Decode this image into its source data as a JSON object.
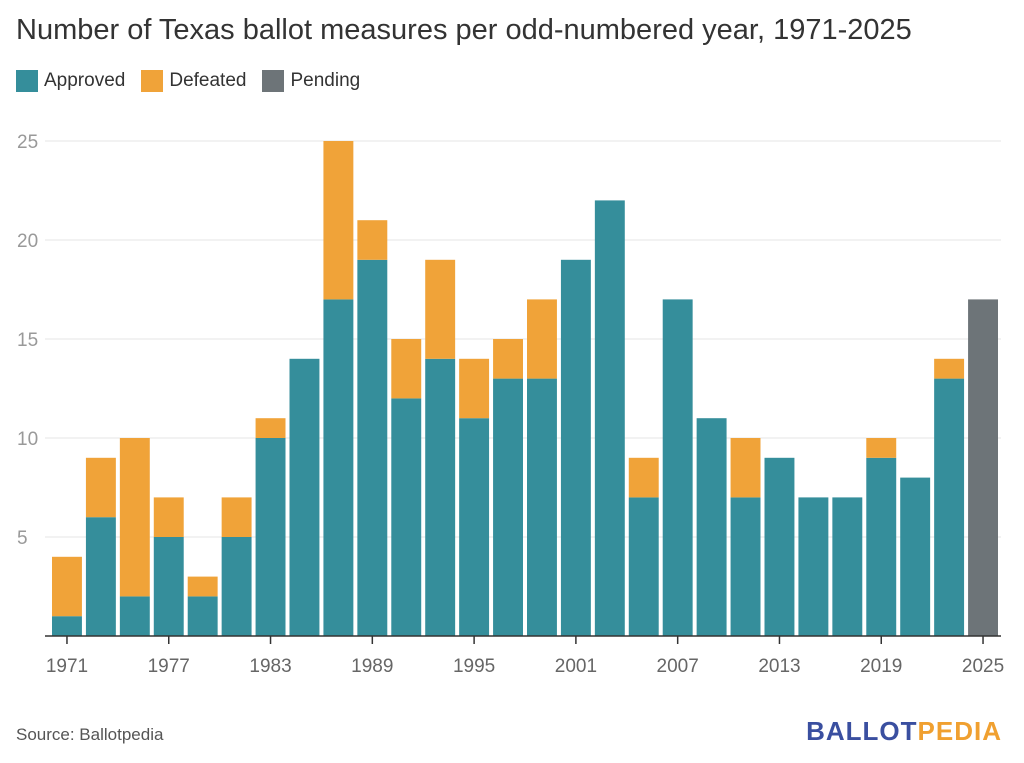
{
  "chart_data": {
    "type": "bar",
    "stacked": true,
    "title": "Number of Texas ballot measures per odd-numbered year, 1971-2025",
    "xlabel": "",
    "ylabel": "",
    "ylim": [
      0,
      25
    ],
    "yticks": [
      "5",
      "10",
      "15",
      "20",
      "25"
    ],
    "xticks": [
      "1971",
      "1977",
      "1983",
      "1989",
      "1995",
      "2001",
      "2007",
      "2013",
      "2019",
      "2025"
    ],
    "grid": true,
    "legend_position": "top-left",
    "categories": [
      1971,
      1973,
      1975,
      1977,
      1979,
      1981,
      1983,
      1985,
      1987,
      1989,
      1991,
      1993,
      1995,
      1997,
      1999,
      2001,
      2003,
      2005,
      2007,
      2009,
      2011,
      2013,
      2015,
      2017,
      2019,
      2021,
      2023,
      2025
    ],
    "series": [
      {
        "name": "Approved",
        "color": "#358e9b",
        "values": [
          1,
          6,
          2,
          5,
          2,
          5,
          10,
          14,
          17,
          19,
          12,
          14,
          11,
          13,
          13,
          19,
          22,
          7,
          17,
          11,
          7,
          9,
          7,
          7,
          9,
          8,
          13,
          0
        ]
      },
      {
        "name": "Defeated",
        "color": "#f0a339",
        "values": [
          3,
          3,
          8,
          2,
          1,
          2,
          1,
          0,
          8,
          2,
          3,
          5,
          3,
          2,
          4,
          0,
          0,
          2,
          0,
          0,
          3,
          0,
          0,
          0,
          1,
          0,
          1,
          0
        ]
      },
      {
        "name": "Pending",
        "color": "#6d7478",
        "values": [
          0,
          0,
          0,
          0,
          0,
          0,
          0,
          0,
          0,
          0,
          0,
          0,
          0,
          0,
          0,
          0,
          0,
          0,
          0,
          0,
          0,
          0,
          0,
          0,
          0,
          0,
          0,
          17
        ]
      }
    ]
  },
  "source": "Source: Ballotpedia",
  "logo": {
    "part1": "BALLOT",
    "part2": "PEDIA"
  }
}
